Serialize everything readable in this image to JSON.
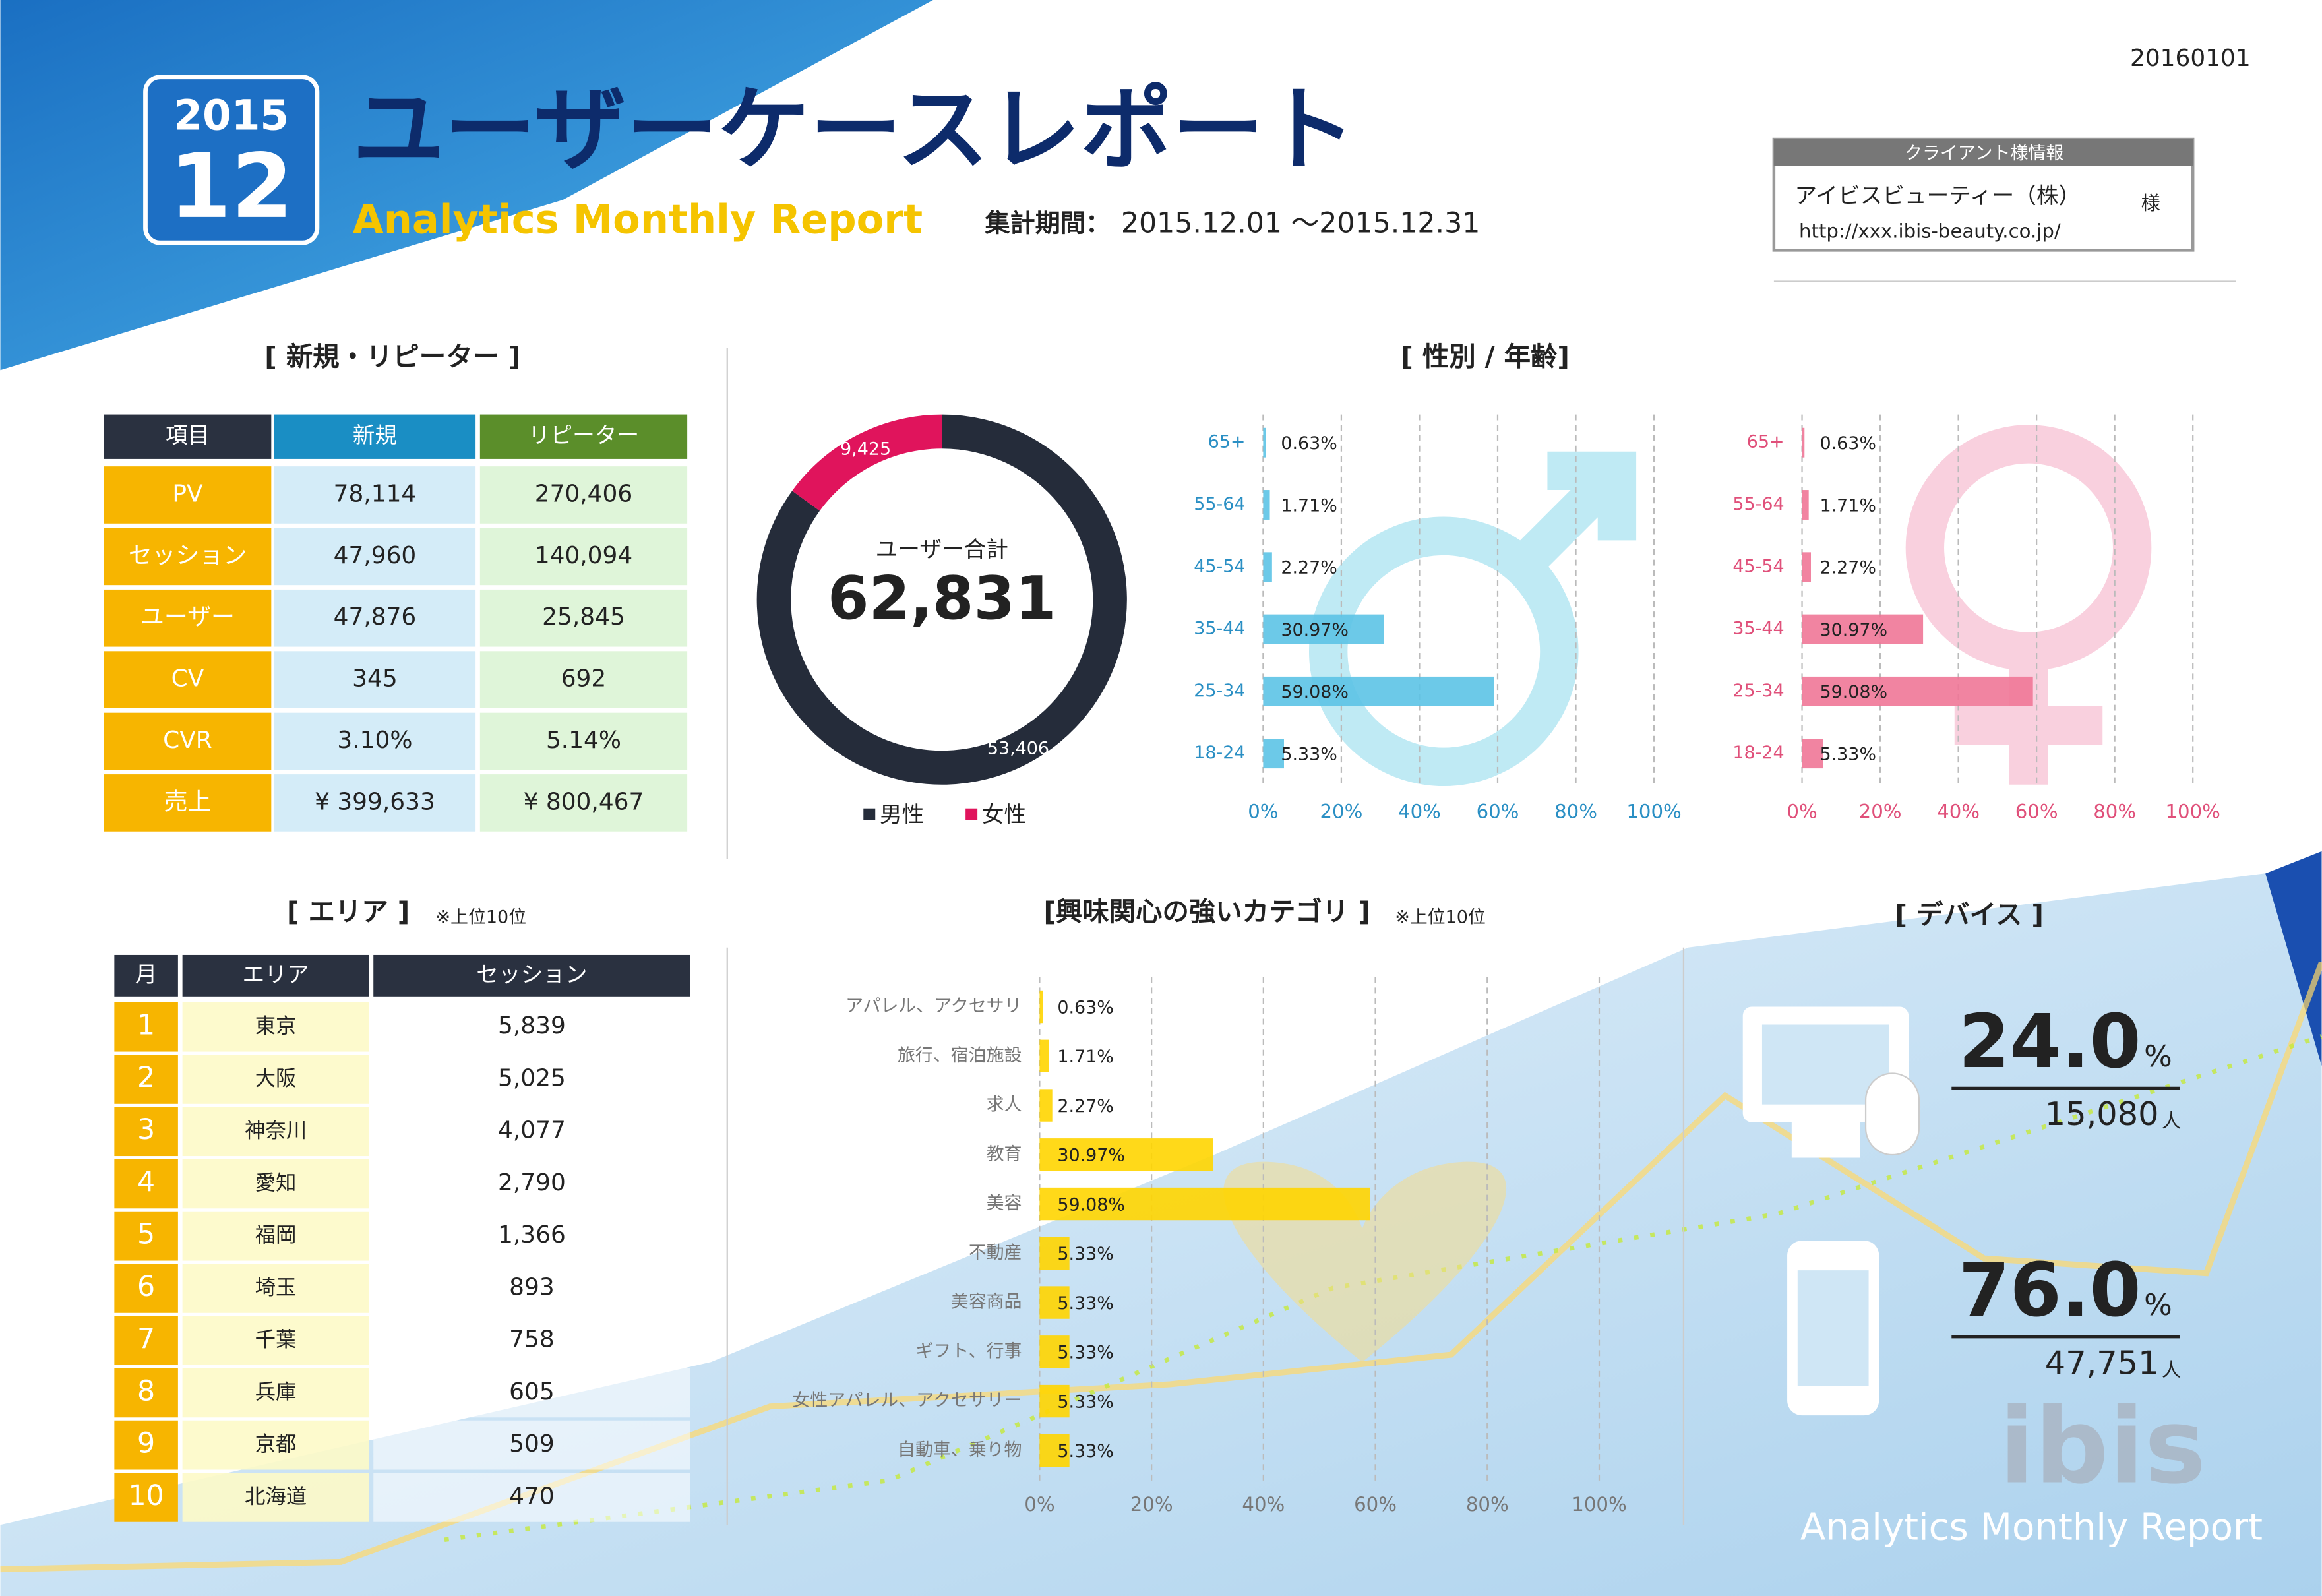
{
  "header": {
    "badge_year": "2015",
    "badge_month": "12",
    "title": "ユーザーケースレポート",
    "subtitle": "Analytics Monthly Report",
    "period_label": "集計期間：",
    "period": "2015.12.01 ～2015.12.31",
    "date": "20160101",
    "client_heading": "クライアント様情報",
    "client_name": "アイビスビューティー（株）",
    "client_suffix": "様",
    "client_url": "http://xxx.ibis-beauty.co.jp/"
  },
  "new_repeater": {
    "title": "[ 新規・リピーター ]",
    "columns": [
      "項目",
      "新規",
      "リピーター"
    ],
    "rows": [
      [
        "PV",
        "78,114",
        "270,406"
      ],
      [
        "セッション",
        "47,960",
        "140,094"
      ],
      [
        "ユーザー",
        "47,876",
        "25,845"
      ],
      [
        "CV",
        "345",
        "692"
      ],
      [
        "CVR",
        "3.10%",
        "5.14%"
      ],
      [
        "売上",
        "¥ 399,633",
        "¥ 800,467"
      ]
    ]
  },
  "area": {
    "title": "[ エリア ]",
    "note": "※上位10位",
    "columns": [
      "月",
      "エリア",
      "セッション"
    ],
    "rows": [
      [
        "1",
        "東京",
        "5,839"
      ],
      [
        "2",
        "大阪",
        "5,025"
      ],
      [
        "3",
        "神奈川",
        "4,077"
      ],
      [
        "4",
        "愛知",
        "2,790"
      ],
      [
        "5",
        "福岡",
        "1,366"
      ],
      [
        "6",
        "埼玉",
        "893"
      ],
      [
        "7",
        "千葉",
        "758"
      ],
      [
        "8",
        "兵庫",
        "605"
      ],
      [
        "9",
        "京都",
        "509"
      ],
      [
        "10",
        "北海道",
        "470"
      ]
    ]
  },
  "device": {
    "title": "[ デバイス ]",
    "items": [
      {
        "percent": "24.0",
        "unit": "%",
        "count": "15,080",
        "count_unit": "人"
      },
      {
        "percent": "76.0",
        "unit": "%",
        "count": "47,751",
        "count_unit": "人"
      }
    ]
  },
  "footer": {
    "logo": "ibis",
    "tagline": "Analytics Monthly Report"
  },
  "chart_data": [
    {
      "type": "donut",
      "title": "[ 性別 / 年齢]",
      "center_label": "ユーザー合計",
      "total": {
        "value": 62831,
        "label": "62,831"
      },
      "categories": [
        "男性",
        "女性"
      ],
      "values": [
        53406,
        9425
      ],
      "value_labels": [
        "53,406",
        "9,425"
      ],
      "colors": [
        "#252c3a",
        "#e0145c"
      ],
      "legend": "bottom"
    },
    {
      "type": "bar",
      "orientation": "horizontal",
      "categories": [
        "65+",
        "55-64",
        "45-54",
        "35-44",
        "25-34",
        "18-24"
      ],
      "values": [
        0.63,
        1.71,
        2.27,
        30.97,
        59.08,
        5.33
      ],
      "value_labels": [
        "0.63%",
        "1.71%",
        "2.27%",
        "30.97%",
        "59.08%",
        "5.33%"
      ],
      "color": "#5cc3e6",
      "label_color": "#2a8fc4",
      "xlim": [
        0,
        100
      ],
      "xticks": [
        {
          "value": 0,
          "label": "0%"
        },
        {
          "value": 20,
          "label": "20%"
        },
        {
          "value": 40,
          "label": "40%"
        },
        {
          "value": 60,
          "label": "60%"
        },
        {
          "value": 80,
          "label": "80%"
        },
        {
          "value": 100,
          "label": "100%"
        }
      ],
      "grid": true
    },
    {
      "type": "bar",
      "orientation": "horizontal",
      "categories": [
        "65+",
        "55-64",
        "45-54",
        "35-44",
        "25-34",
        "18-24"
      ],
      "values": [
        0.63,
        1.71,
        2.27,
        30.97,
        59.08,
        5.33
      ],
      "value_labels": [
        "0.63%",
        "1.71%",
        "2.27%",
        "30.97%",
        "59.08%",
        "5.33%"
      ],
      "color": "#ef7797",
      "label_color": "#e0507a",
      "xlim": [
        0,
        100
      ],
      "xticks": [
        {
          "value": 0,
          "label": "0%"
        },
        {
          "value": 20,
          "label": "20%"
        },
        {
          "value": 40,
          "label": "40%"
        },
        {
          "value": 60,
          "label": "60%"
        },
        {
          "value": 80,
          "label": "80%"
        },
        {
          "value": 100,
          "label": "100%"
        }
      ],
      "grid": true
    },
    {
      "type": "bar",
      "orientation": "horizontal",
      "title": "[興味関心の強いカテゴリ ]",
      "note": "※上位10位",
      "categories": [
        "アパレル、アクセサリ",
        "旅行、宿泊施設",
        "求人",
        "教育",
        "美容",
        "不動産",
        "美容商品",
        "ギフト、行事",
        "女性アパレル、アクセサリー",
        "自動車、乗り物"
      ],
      "values": [
        0.63,
        1.71,
        2.27,
        30.97,
        59.08,
        5.33,
        5.33,
        5.33,
        5.33,
        5.33
      ],
      "value_labels": [
        "0.63%",
        "1.71%",
        "2.27%",
        "30.97%",
        "59.08%",
        "5.33%",
        "5.33%",
        "5.33%",
        "5.33%",
        "5.33%"
      ],
      "color": "#ffd500",
      "label_color": "#777777",
      "xlim": [
        0,
        100
      ],
      "xticks": [
        {
          "value": 0,
          "label": "0%"
        },
        {
          "value": 20,
          "label": "20%"
        },
        {
          "value": 40,
          "label": "40%"
        },
        {
          "value": 60,
          "label": "60%"
        },
        {
          "value": 80,
          "label": "80%"
        },
        {
          "value": 100,
          "label": "100%"
        }
      ],
      "grid": true
    }
  ]
}
